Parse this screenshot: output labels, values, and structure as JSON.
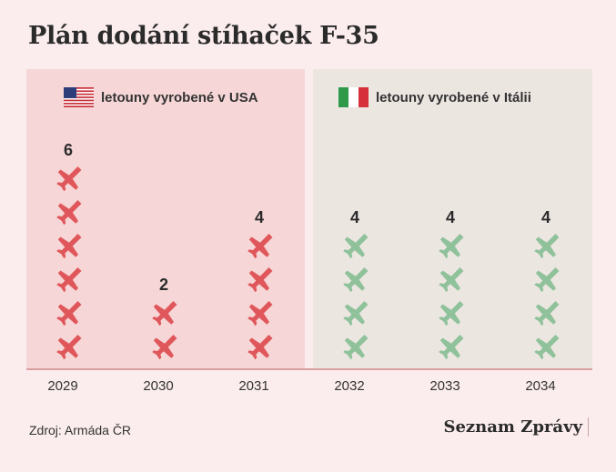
{
  "title": "Plán dodání stíhaček F-35",
  "legend": {
    "usa": "letouny vyrobené v USA",
    "italy": "letouny vyrobené v Itálii"
  },
  "source": "Zdroj: Armáda ČR",
  "brand": "Seznam Zprávy",
  "colors": {
    "usa_icon": "#e0575b",
    "italy_icon": "#8fc29b",
    "usa_panel": "#f6d6d6",
    "italy_panel": "#ece6e1"
  },
  "chart_data": {
    "type": "bar",
    "categories": [
      "2029",
      "2030",
      "2031",
      "2032",
      "2033",
      "2034"
    ],
    "values": [
      6,
      2,
      4,
      4,
      4,
      4
    ],
    "origin": [
      "usa",
      "usa",
      "usa",
      "italy",
      "italy",
      "italy"
    ]
  }
}
